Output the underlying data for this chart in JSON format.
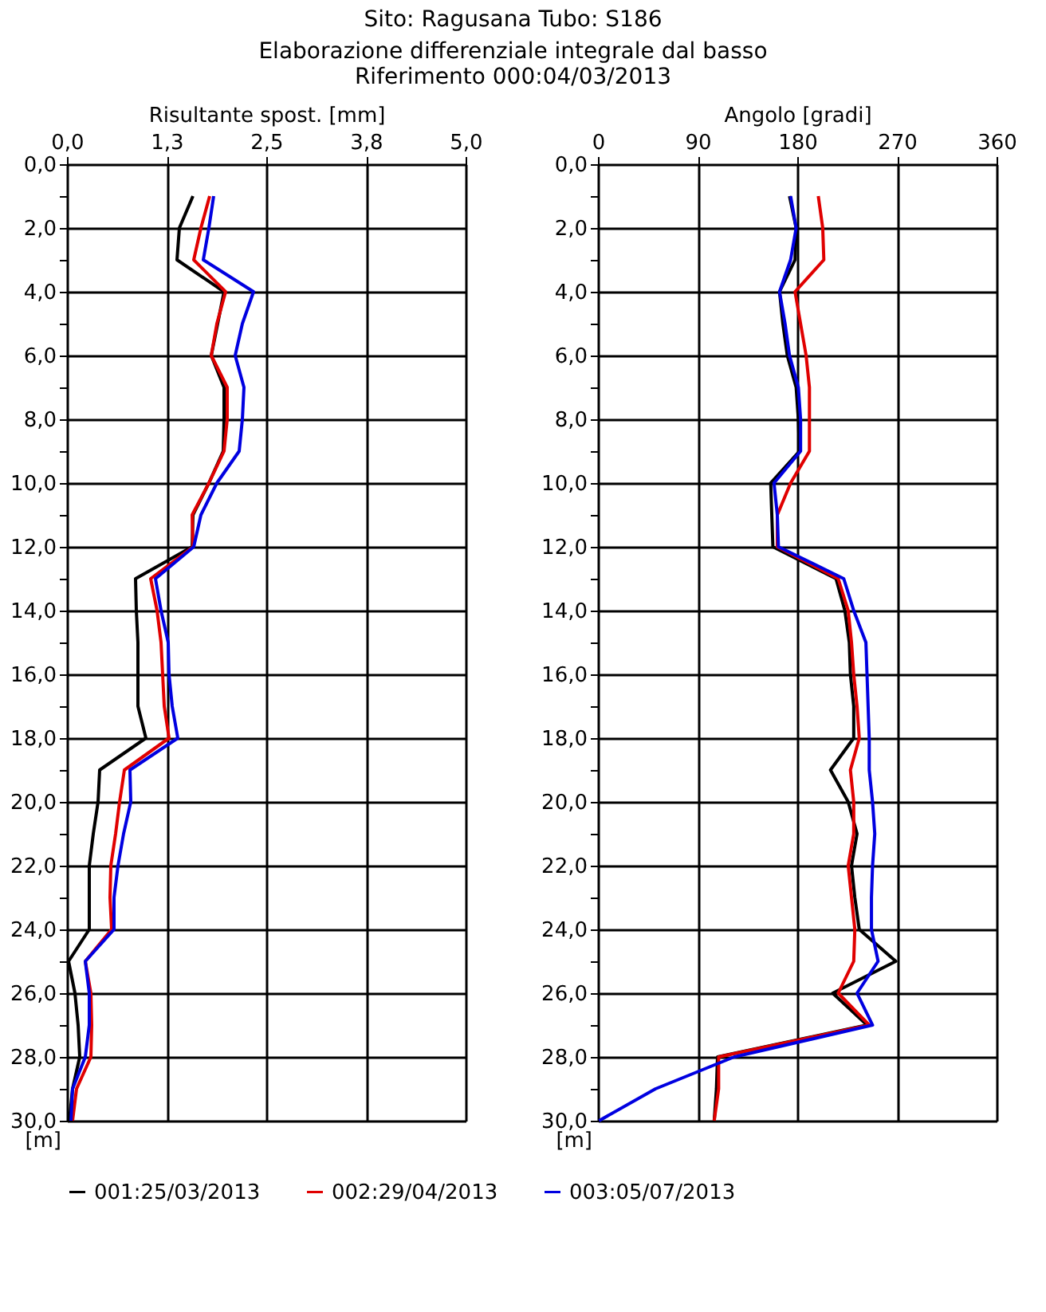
{
  "chart_data": [
    {
      "type": "line",
      "orientation": "horizontal",
      "title": "Sito: Ragusana     Tubo: S186",
      "subtitle": "Elaborazione differenziale integrale dal basso",
      "annotations": [
        "Riferimento  000:04/03/2013"
      ],
      "xlabel": "Risultante spost. [mm]",
      "ylabel": "[m]",
      "legend": "bottom",
      "grid": true,
      "x": [
        1,
        2,
        3,
        4,
        5,
        6,
        7,
        8,
        9,
        10,
        11,
        12,
        13,
        14,
        15,
        16,
        17,
        18,
        19,
        20,
        21,
        22,
        23,
        24,
        25,
        26,
        27,
        28,
        29,
        30
      ],
      "xlim": [
        0,
        5
      ],
      "xticks": [
        {
          "value": 0,
          "label": "0,0"
        },
        {
          "value": 1.25,
          "label": "1,3"
        },
        {
          "value": 2.5,
          "label": "2,5"
        },
        {
          "value": 3.75,
          "label": "3,8"
        },
        {
          "value": 5,
          "label": "5,0"
        }
      ],
      "ylim": [
        30,
        0
      ],
      "yticks": [
        {
          "value": 0,
          "label": "0,0"
        },
        {
          "value": 1,
          "label": null
        },
        {
          "value": 2,
          "label": "2,0"
        },
        {
          "value": 3,
          "label": null
        },
        {
          "value": 4,
          "label": "4,0"
        },
        {
          "value": 5,
          "label": null
        },
        {
          "value": 6,
          "label": "6,0"
        },
        {
          "value": 7,
          "label": null
        },
        {
          "value": 8,
          "label": "8,0"
        },
        {
          "value": 9,
          "label": null
        },
        {
          "value": 10,
          "label": "10,0"
        },
        {
          "value": 11,
          "label": null
        },
        {
          "value": 12,
          "label": "12,0"
        },
        {
          "value": 13,
          "label": null
        },
        {
          "value": 14,
          "label": "14,0"
        },
        {
          "value": 15,
          "label": null
        },
        {
          "value": 16,
          "label": "16,0"
        },
        {
          "value": 17,
          "label": null
        },
        {
          "value": 18,
          "label": "18,0"
        },
        {
          "value": 19,
          "label": null
        },
        {
          "value": 20,
          "label": "20,0"
        },
        {
          "value": 21,
          "label": null
        },
        {
          "value": 22,
          "label": "22,0"
        },
        {
          "value": 23,
          "label": null
        },
        {
          "value": 24,
          "label": "24,0"
        },
        {
          "value": 25,
          "label": null
        },
        {
          "value": 26,
          "label": "26,0"
        },
        {
          "value": 27,
          "label": null
        },
        {
          "value": 28,
          "label": "28,0"
        },
        {
          "value": 29,
          "label": null
        },
        {
          "value": 30,
          "label": "30,0"
        }
      ],
      "series": [
        {
          "name": "001:25/03/2013",
          "color": "#000000",
          "values": [
            1.58,
            1.41,
            1.38,
            1.97,
            1.89,
            1.81,
            1.97,
            1.97,
            1.96,
            1.78,
            1.58,
            1.57,
            0.86,
            0.87,
            0.89,
            0.89,
            0.89,
            0.99,
            0.41,
            0.39,
            0.33,
            0.28,
            0.28,
            0.28,
            0.02,
            0.1,
            0.14,
            0.16,
            0.07,
            0.03
          ]
        },
        {
          "name": "002:29/04/2013",
          "color": "#e00000",
          "values": [
            1.79,
            1.68,
            1.59,
            1.99,
            1.88,
            1.81,
            2.01,
            2.01,
            1.97,
            1.78,
            1.57,
            1.58,
            1.05,
            1.13,
            1.18,
            1.2,
            1.22,
            1.28,
            0.72,
            0.66,
            0.61,
            0.55,
            0.54,
            0.56,
            0.23,
            0.3,
            0.31,
            0.3,
            0.12,
            0.07
          ]
        },
        {
          "name": "003:05/07/2013",
          "color": "#0000e0",
          "values": [
            1.84,
            1.78,
            1.71,
            2.34,
            2.2,
            2.11,
            2.22,
            2.2,
            2.16,
            1.88,
            1.68,
            1.59,
            1.11,
            1.18,
            1.27,
            1.28,
            1.32,
            1.39,
            0.79,
            0.8,
            0.71,
            0.64,
            0.59,
            0.59,
            0.23,
            0.28,
            0.28,
            0.23,
            0.07,
            0.05
          ]
        }
      ]
    },
    {
      "type": "line",
      "orientation": "horizontal",
      "xlabel": "Angolo [gradi]",
      "ylabel": "[m]",
      "legend": "bottom",
      "grid": true,
      "x": [
        1,
        2,
        3,
        4,
        5,
        6,
        7,
        8,
        9,
        10,
        11,
        12,
        13,
        14,
        15,
        16,
        17,
        18,
        19,
        20,
        21,
        22,
        23,
        24,
        25,
        26,
        27,
        28,
        29,
        30
      ],
      "xlim": [
        0,
        360
      ],
      "xticks": [
        0,
        90,
        180,
        270,
        360
      ],
      "ylim": [
        30,
        0
      ],
      "yticks": [
        {
          "value": 0,
          "label": "0,0"
        },
        {
          "value": 1,
          "label": null
        },
        {
          "value": 2,
          "label": "2,0"
        },
        {
          "value": 3,
          "label": null
        },
        {
          "value": 4,
          "label": "4,0"
        },
        {
          "value": 5,
          "label": null
        },
        {
          "value": 6,
          "label": "6,0"
        },
        {
          "value": 7,
          "label": null
        },
        {
          "value": 8,
          "label": "8,0"
        },
        {
          "value": 9,
          "label": null
        },
        {
          "value": 10,
          "label": "10,0"
        },
        {
          "value": 11,
          "label": null
        },
        {
          "value": 12,
          "label": "12,0"
        },
        {
          "value": 13,
          "label": null
        },
        {
          "value": 14,
          "label": "14,0"
        },
        {
          "value": 15,
          "label": null
        },
        {
          "value": 16,
          "label": "16,0"
        },
        {
          "value": 17,
          "label": null
        },
        {
          "value": 18,
          "label": "18,0"
        },
        {
          "value": 19,
          "label": null
        },
        {
          "value": 20,
          "label": "20,0"
        },
        {
          "value": 21,
          "label": null
        },
        {
          "value": 22,
          "label": "22,0"
        },
        {
          "value": 23,
          "label": null
        },
        {
          "value": 24,
          "label": "24,0"
        },
        {
          "value": 25,
          "label": null
        },
        {
          "value": 26,
          "label": "26,0"
        },
        {
          "value": 27,
          "label": null
        },
        {
          "value": 28,
          "label": "28,0"
        },
        {
          "value": 29,
          "label": null
        },
        {
          "value": 30,
          "label": "30,0"
        }
      ],
      "series": [
        {
          "name": "001:25/03/2013",
          "color": "#000000",
          "values": [
            173,
            179,
            178,
            164,
            167,
            171,
            179,
            181,
            182,
            156,
            157,
            158,
            215,
            223,
            227,
            228,
            231,
            231,
            210,
            226,
            234,
            229,
            232,
            236,
            269,
            212,
            243,
            108,
            107,
            105
          ]
        },
        {
          "name": "002:29/04/2013",
          "color": "#e00000",
          "values": [
            199,
            203,
            204,
            178,
            183,
            188,
            191,
            191,
            191,
            174,
            162,
            162,
            217,
            226,
            229,
            231,
            234,
            236,
            228,
            231,
            231,
            226,
            229,
            232,
            231,
            217,
            245,
            109,
            109,
            105
          ]
        },
        {
          "name": "003:05/07/2013",
          "color": "#0000e0",
          "values": [
            174,
            179,
            174,
            164,
            169,
            173,
            181,
            183,
            183,
            159,
            162,
            163,
            222,
            231,
            242,
            243,
            244,
            245,
            245,
            248,
            250,
            248,
            247,
            247,
            253,
            234,
            248,
            123,
            52,
            1
          ]
        }
      ]
    }
  ]
}
